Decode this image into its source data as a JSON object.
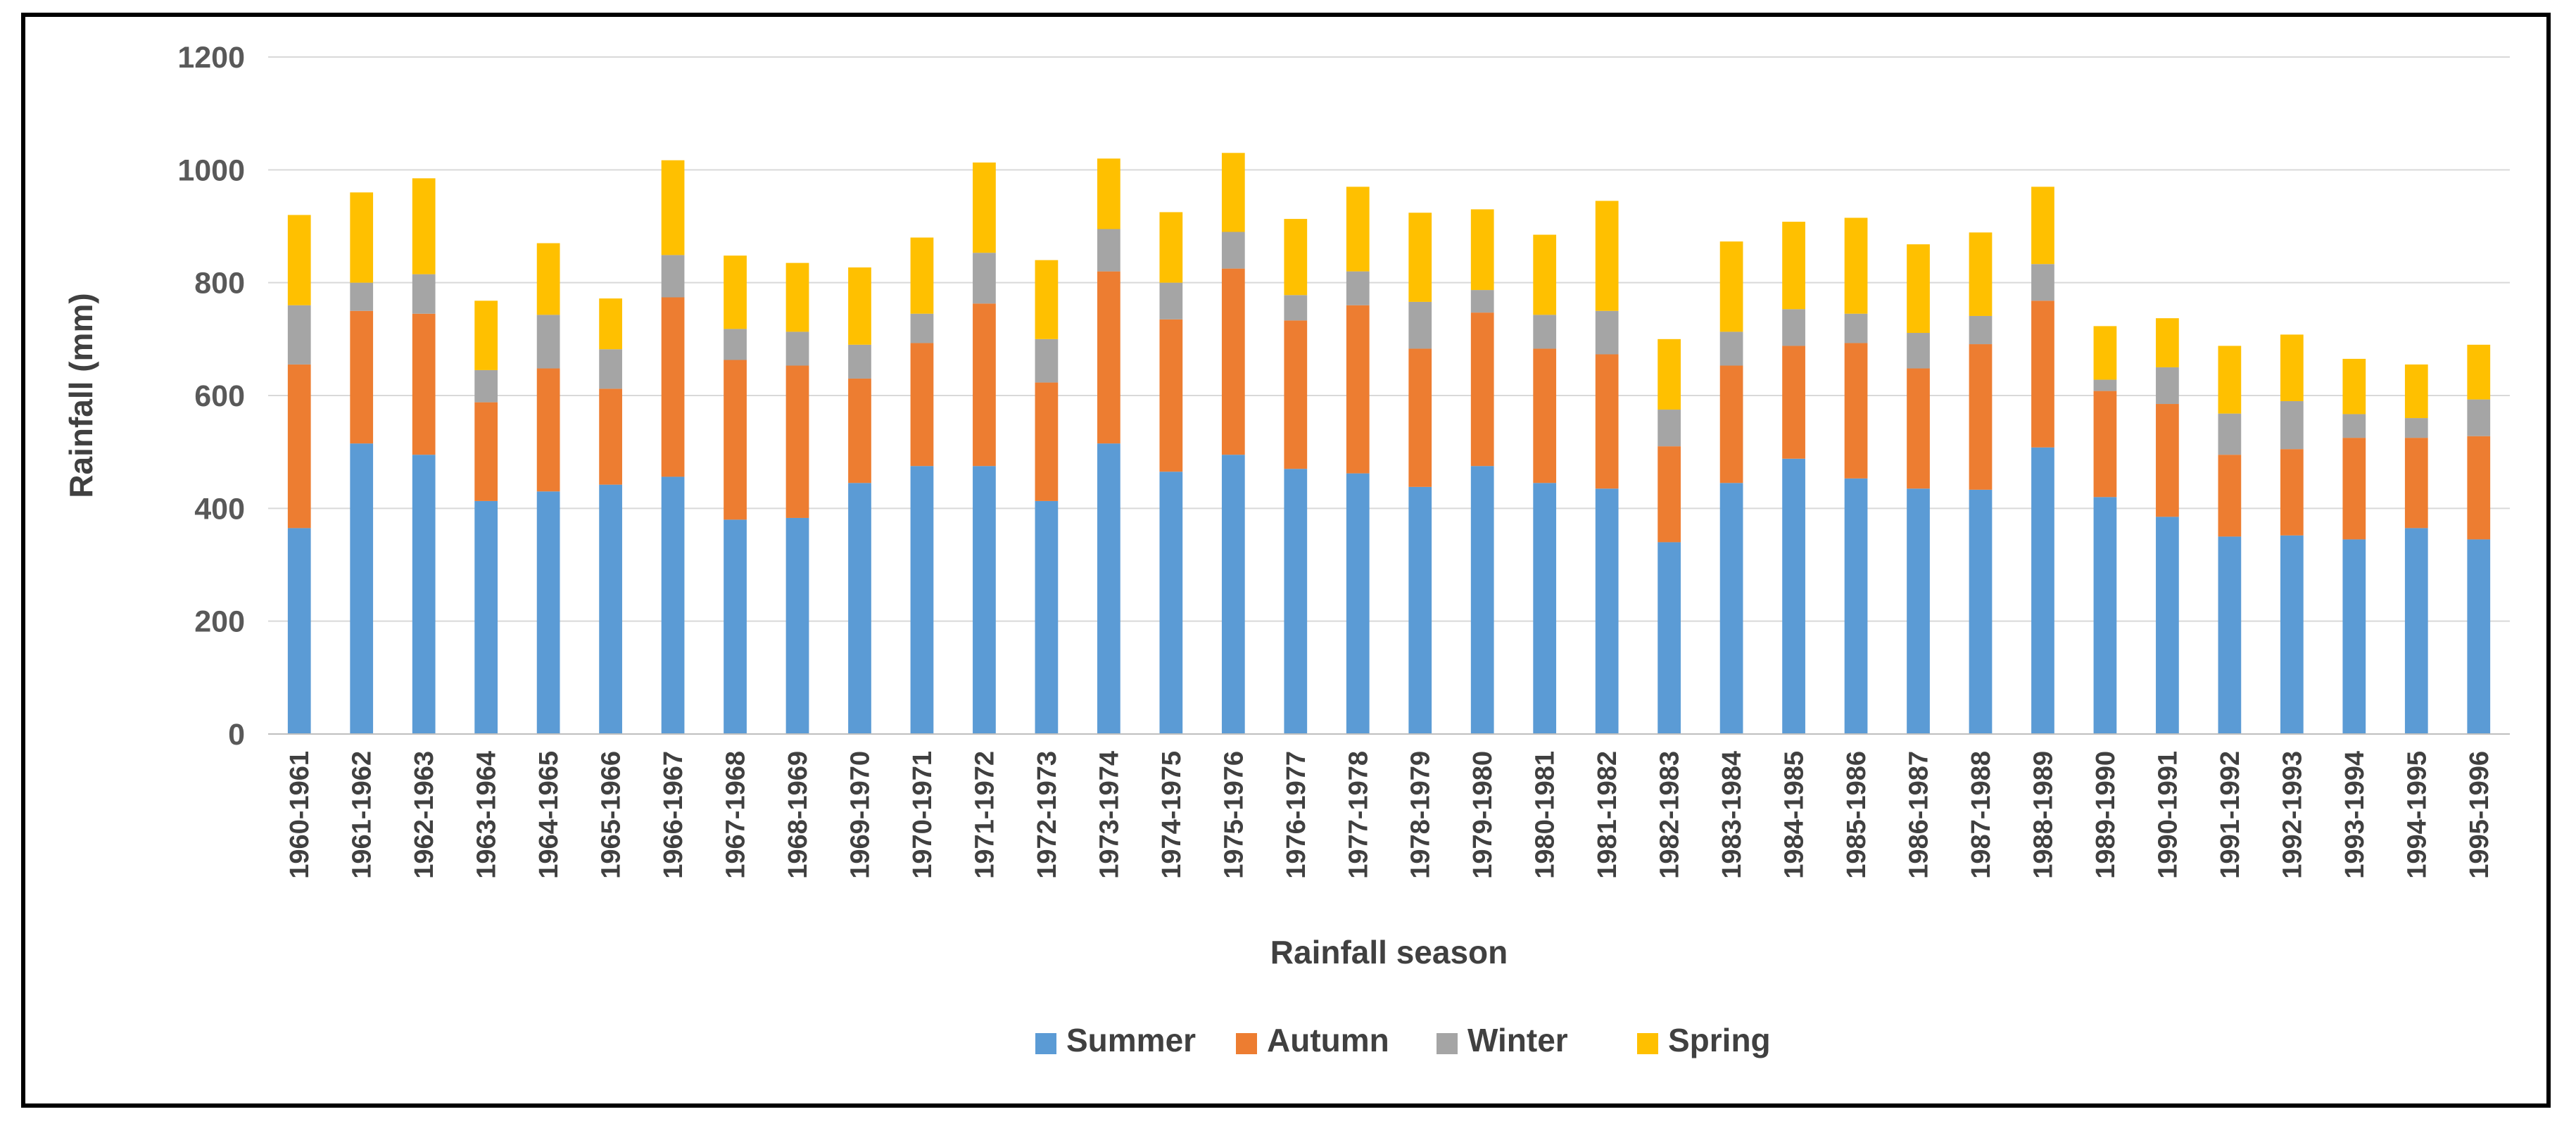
{
  "chart_data": {
    "type": "bar",
    "stacked": true,
    "title": "",
    "xlabel": "Rainfall season",
    "ylabel": "Rainfall (mm)",
    "ylim": [
      0,
      1200
    ],
    "yticks": [
      0,
      200,
      400,
      600,
      800,
      1000,
      1200
    ],
    "grid": true,
    "legend_position": "bottom",
    "categories": [
      "1960-1961",
      "1961-1962",
      "1962-1963",
      "1963-1964",
      "1964-1965",
      "1965-1966",
      "1966-1967",
      "1967-1968",
      "1968-1969",
      "1969-1970",
      "1970-1971",
      "1971-1972",
      "1972-1973",
      "1973-1974",
      "1974-1975",
      "1975-1976",
      "1976-1977",
      "1977-1978",
      "1978-1979",
      "1979-1980",
      "1980-1981",
      "1981-1982",
      "1982-1983",
      "1983-1984",
      "1984-1985",
      "1985-1986",
      "1986-1987",
      "1987-1988",
      "1988-1989",
      "1989-1990",
      "1990-1991",
      "1991-1992",
      "1992-1993",
      "1993-1994",
      "1994-1995",
      "1995-1996"
    ],
    "series": [
      {
        "name": "Summer",
        "color": "#5B9BD5",
        "values": [
          365,
          515,
          495,
          413,
          430,
          442,
          456,
          380,
          383,
          445,
          475,
          475,
          413,
          515,
          465,
          495,
          470,
          462,
          438,
          475,
          445,
          435,
          340,
          445,
          488,
          453,
          435,
          433,
          508,
          420,
          385,
          350,
          352,
          345,
          365,
          345
        ]
      },
      {
        "name": "Autumn",
        "color": "#ED7D31",
        "values": [
          290,
          235,
          250,
          175,
          218,
          170,
          318,
          283,
          270,
          185,
          218,
          288,
          210,
          305,
          270,
          330,
          263,
          298,
          245,
          272,
          238,
          238,
          170,
          208,
          200,
          240,
          213,
          258,
          260,
          188,
          200,
          145,
          153,
          180,
          160,
          183
        ]
      },
      {
        "name": "Winter",
        "color": "#A5A5A5",
        "values": [
          105,
          50,
          70,
          57,
          95,
          70,
          75,
          55,
          60,
          60,
          52,
          90,
          77,
          75,
          65,
          65,
          45,
          60,
          83,
          40,
          60,
          77,
          65,
          60,
          65,
          52,
          63,
          50,
          65,
          20,
          65,
          73,
          85,
          42,
          35,
          65
        ]
      },
      {
        "name": "Spring",
        "color": "#FFC000",
        "values": [
          160,
          160,
          170,
          123,
          127,
          90,
          168,
          130,
          122,
          137,
          135,
          160,
          140,
          125,
          125,
          140,
          135,
          150,
          158,
          143,
          142,
          195,
          125,
          160,
          155,
          170,
          157,
          148,
          137,
          95,
          87,
          120,
          118,
          98,
          95,
          97
        ]
      }
    ]
  }
}
